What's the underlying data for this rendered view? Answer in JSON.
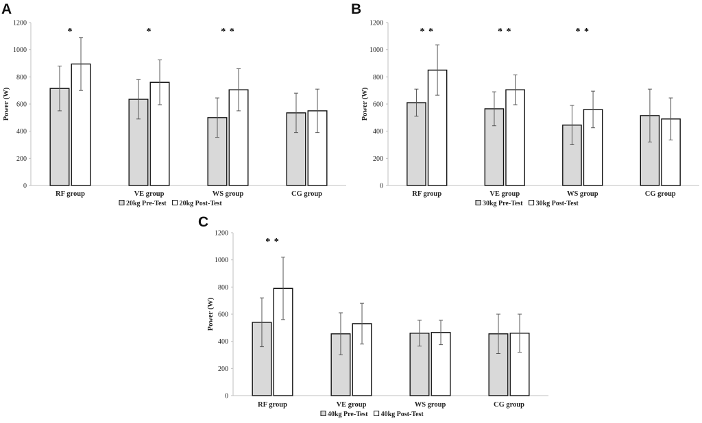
{
  "figure": {
    "colors": {
      "pre": "#d9d9d9",
      "post": "#ffffff",
      "axis": "#bfbfbf",
      "bar_stroke": "#111111",
      "error": "#555555"
    }
  },
  "chart_data": [
    {
      "panel": "A",
      "type": "bar",
      "title": "",
      "ylabel": "Power (W)",
      "xlabel": "",
      "ylim": [
        0,
        1200
      ],
      "yticks": [
        0,
        200,
        400,
        600,
        800,
        1000,
        1200
      ],
      "categories": [
        "RF group",
        "VE group",
        "WS group",
        "CG group"
      ],
      "series": [
        {
          "name": "20kg Pre-Test",
          "values": [
            715,
            635,
            500,
            535
          ],
          "errors": [
            165,
            145,
            145,
            145
          ]
        },
        {
          "name": "20kg Post-Test",
          "values": [
            895,
            760,
            705,
            550
          ],
          "errors": [
            195,
            165,
            155,
            160
          ]
        }
      ],
      "annotations": [
        "*",
        "*",
        "* *",
        ""
      ],
      "legend": "bottom"
    },
    {
      "panel": "B",
      "type": "bar",
      "title": "",
      "ylabel": "Power (W)",
      "xlabel": "",
      "ylim": [
        0,
        1200
      ],
      "yticks": [
        0,
        200,
        400,
        600,
        800,
        1000,
        1200
      ],
      "categories": [
        "RF group",
        "VE group",
        "WS group",
        "CG group"
      ],
      "series": [
        {
          "name": "30kg Pre-Test",
          "values": [
            610,
            565,
            445,
            515
          ],
          "errors": [
            100,
            125,
            145,
            195
          ]
        },
        {
          "name": "30kg Post-Test",
          "values": [
            850,
            705,
            560,
            490
          ],
          "errors": [
            185,
            110,
            135,
            155
          ]
        }
      ],
      "annotations": [
        "* *",
        "* *",
        "* *",
        ""
      ],
      "legend": "bottom"
    },
    {
      "panel": "C",
      "type": "bar",
      "title": "",
      "ylabel": "Power (W)",
      "xlabel": "",
      "ylim": [
        0,
        1200
      ],
      "yticks": [
        0,
        200,
        400,
        600,
        800,
        1000,
        1200
      ],
      "categories": [
        "RF group",
        "VE group",
        "WS group",
        "CG group"
      ],
      "series": [
        {
          "name": "40kg Pre-Test",
          "values": [
            540,
            455,
            460,
            455
          ],
          "errors": [
            180,
            155,
            95,
            145
          ]
        },
        {
          "name": "40kg Post-Test",
          "values": [
            790,
            530,
            465,
            460
          ],
          "errors": [
            230,
            150,
            90,
            140
          ]
        }
      ],
      "annotations": [
        "* *",
        "",
        "",
        ""
      ],
      "legend": "bottom"
    }
  ]
}
